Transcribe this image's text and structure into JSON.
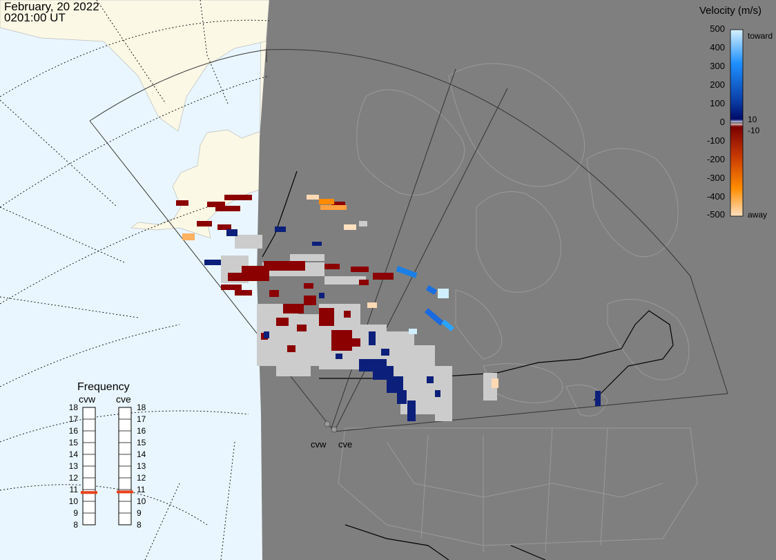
{
  "header": {
    "date": "February, 20 2022",
    "time": "0201:00 UT"
  },
  "velocity_scale": {
    "title": "Velocity (m/s)",
    "ticks": [
      "500",
      "400",
      "300",
      "200",
      "100",
      "0",
      "-100",
      "-200",
      "-300",
      "-400",
      "-500"
    ],
    "label_10": "10",
    "label_neg10": "-10",
    "toward_label": "toward",
    "away_label": "away",
    "colors": {
      "toward_light": "#c9ecff",
      "toward_mid": "#1a90ff",
      "toward_dark": "#0c2a8a",
      "away_dark": "#8b0000",
      "away_mid": "#ff8a00",
      "away_light": "#ffd9b3",
      "ground_scatter": "#cccccc"
    }
  },
  "frequency": {
    "title": "Frequency",
    "radars": [
      {
        "name": "cvw",
        "selected_mhz": 10.75
      },
      {
        "name": "cve",
        "selected_mhz": 10.8
      }
    ],
    "left_ticks": [
      "18",
      "17",
      "16",
      "15",
      "14",
      "13",
      "12",
      "11",
      "10",
      "9",
      "8"
    ],
    "right_ticks": [
      "18",
      "17",
      "16",
      "15",
      "14",
      "13",
      "12",
      "11",
      "10",
      "9",
      "8"
    ],
    "marker_color": "#e8401a"
  },
  "radar_sites": {
    "cvw_label": "cvw",
    "cve_label": "cve"
  },
  "map_colors": {
    "ocean_day": "#e9f6ff",
    "land_day": "#fbf8e6",
    "night": "#7f7f7f"
  }
}
